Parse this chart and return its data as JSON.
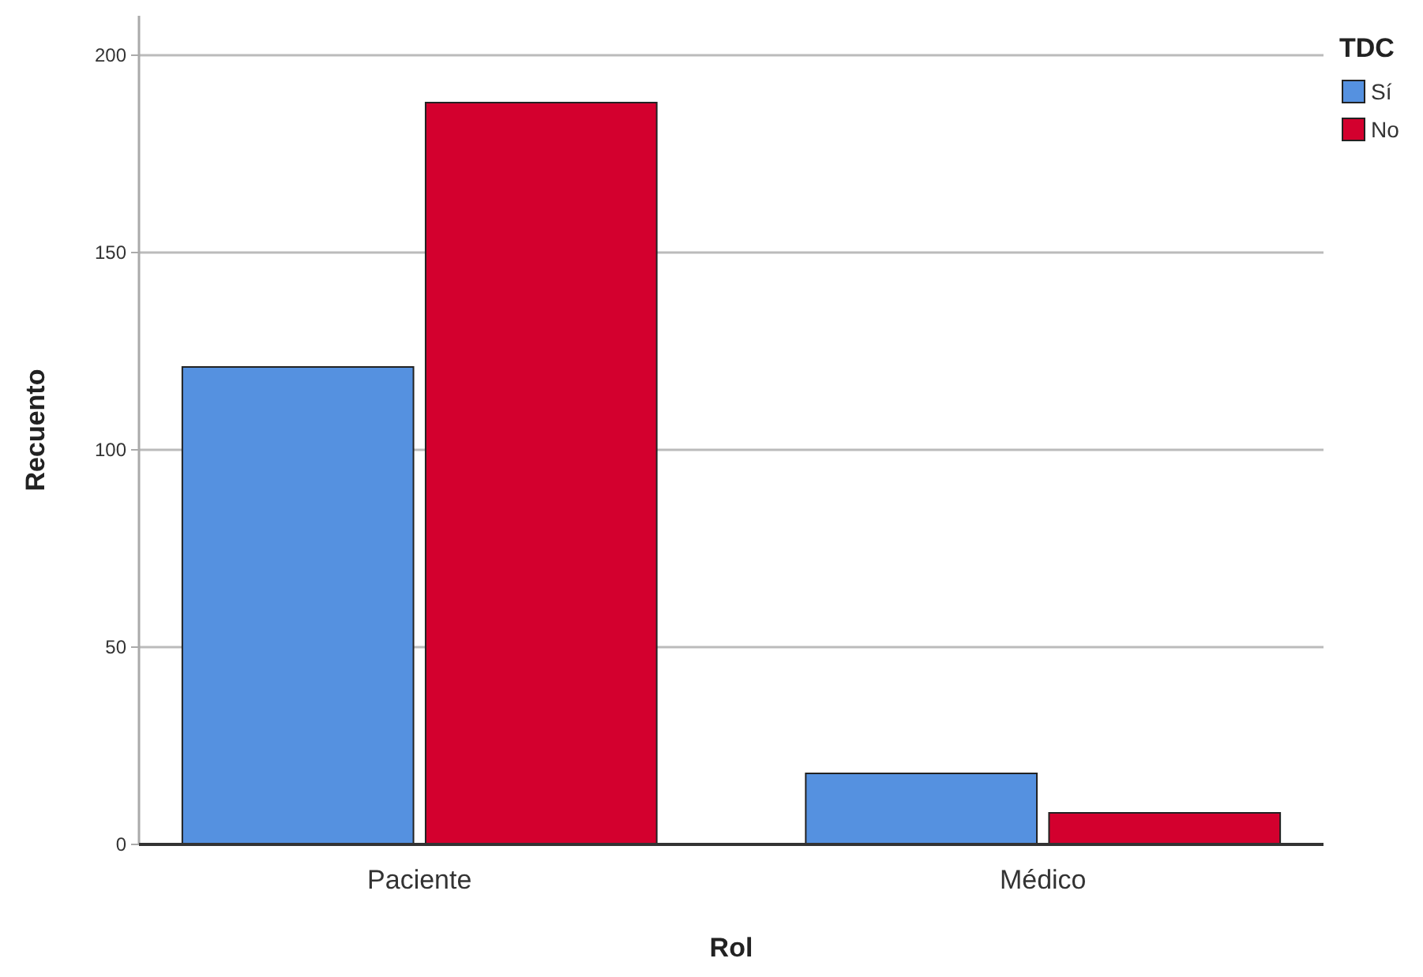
{
  "chart_data": {
    "type": "bar",
    "xlabel": "Rol",
    "ylabel": "Recuento",
    "legend_title": "TDC",
    "categories": [
      "Paciente",
      "Médico"
    ],
    "series": [
      {
        "name": "Sí",
        "color": "#5591e0",
        "values": [
          121,
          18
        ]
      },
      {
        "name": "No",
        "color": "#d3002e",
        "values": [
          188,
          8
        ]
      }
    ],
    "ylim": [
      0,
      210
    ],
    "yticks": [
      0,
      50,
      100,
      150,
      200
    ],
    "grid": "y",
    "legend": "top right"
  }
}
